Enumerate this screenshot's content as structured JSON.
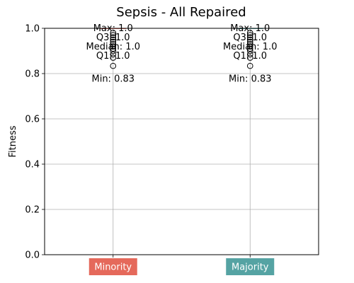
{
  "chart_data": {
    "type": "box",
    "title": "Sepsis - All Repaired",
    "ylabel": "Fitness",
    "xlabel": "",
    "ylim": [
      0.0,
      1.0
    ],
    "yticks": [
      "0.0",
      "0.2",
      "0.4",
      "0.6",
      "0.8",
      "1.0"
    ],
    "grid": true,
    "categories": [
      {
        "label": "Minority",
        "color": "#e5695b",
        "stats": {
          "min": 0.83,
          "q1": 1.0,
          "median": 1.0,
          "q3": 1.0,
          "max": 1.0
        },
        "outliers": [
          0.834,
          0.87,
          0.885,
          0.9,
          0.91,
          0.92,
          0.93,
          0.94,
          0.95,
          0.96,
          0.97,
          0.98
        ],
        "annotations": [
          "Max: 1.0",
          "Q3: 1.0",
          "Median: 1.0",
          "Q1: 1.0",
          "Min: 0.83"
        ]
      },
      {
        "label": "Majority",
        "color": "#55a3a3",
        "stats": {
          "min": 0.83,
          "q1": 1.0,
          "median": 1.0,
          "q3": 1.0,
          "max": 1.0
        },
        "outliers": [
          0.834,
          0.87,
          0.885,
          0.9,
          0.91,
          0.92,
          0.93,
          0.94,
          0.95,
          0.96,
          0.97,
          0.98
        ],
        "annotations": [
          "Max: 1.0",
          "Q3: 1.0",
          "Median: 1.0",
          "Q1: 1.0",
          "Min: 0.83"
        ]
      }
    ]
  }
}
